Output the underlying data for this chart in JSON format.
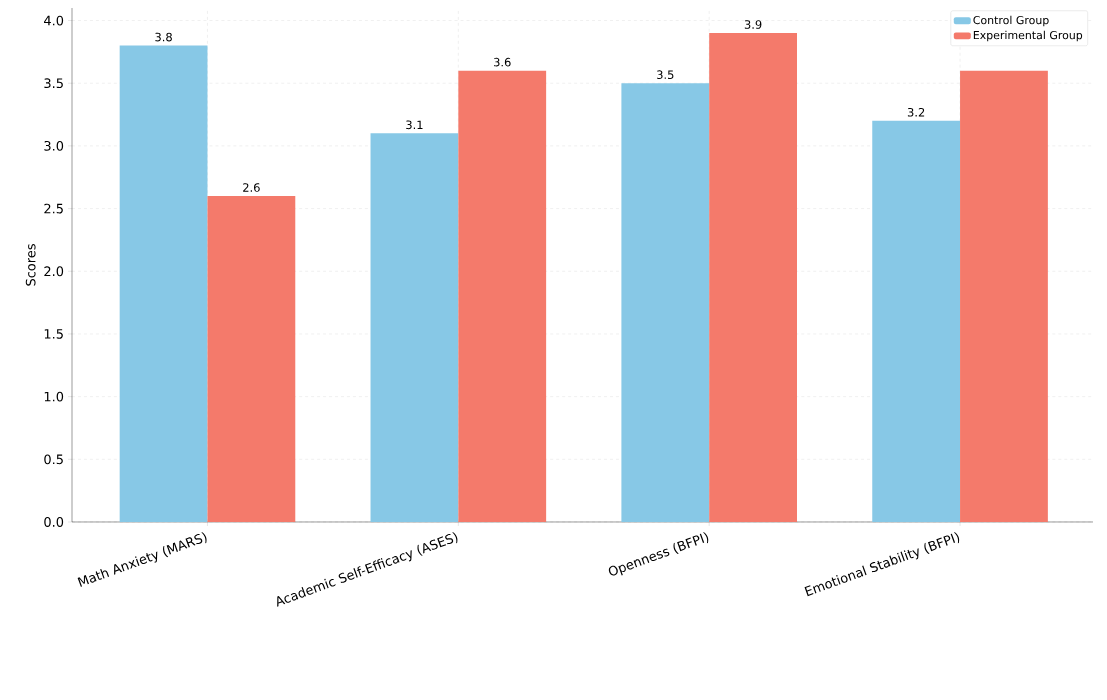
{
  "chart_data": {
    "type": "bar",
    "ylabel": "Scores",
    "categories": [
      "Math Anxiety (MARS)",
      "Academic Self-Efficacy (ASES)",
      "Openness (BFPI)",
      "Emotional Stability (BFPI)"
    ],
    "series": [
      {
        "name": "Control Group",
        "color": "#87c8e6",
        "values": [
          3.8,
          3.1,
          3.5,
          3.2
        ],
        "value_labels": [
          "3.8",
          "3.1",
          "3.5",
          "3.2"
        ]
      },
      {
        "name": "Experimental Group",
        "color": "#f47a6b",
        "values": [
          2.6,
          3.6,
          3.9,
          3.6
        ],
        "value_labels": [
          "2.6",
          "3.6",
          "3.9",
          null
        ]
      }
    ],
    "ylim": [
      0,
      4.1
    ],
    "yticks": [
      {
        "value": 0,
        "label": "0.0"
      },
      0.5,
      {
        "value": 1,
        "label": "1.0"
      },
      1.5,
      {
        "value": 2,
        "label": "2.0"
      },
      2.5,
      {
        "value": 3,
        "label": "3.0"
      },
      3.5,
      {
        "value": 4,
        "label": "4.0"
      }
    ],
    "grid": true,
    "legend": "top right"
  }
}
